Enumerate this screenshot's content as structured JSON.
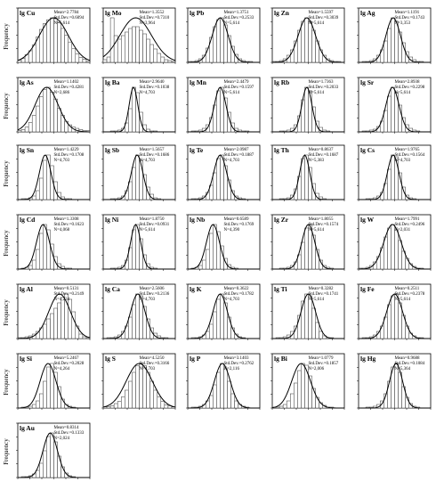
{
  "y_axis_label": "Frequency",
  "chart_data": [
    {
      "type": "bar",
      "title": "lg Cu",
      "stats": {
        "mean": "Mean=2.7784",
        "sd": "Std.Dev.=0.6094",
        "n": "N=5,614"
      },
      "values": [
        2,
        4,
        8,
        12,
        18,
        26,
        34,
        40,
        44,
        46,
        45,
        41,
        35,
        28,
        21,
        14,
        9,
        5,
        3,
        1
      ],
      "fit": {
        "mean": 0.5,
        "sd": 0.2
      }
    },
    {
      "type": "bar",
      "title": "lg Mo",
      "stats": {
        "mean": "Mean=1.3552",
        "sd": "Std.Dev.=0.7310",
        "n": "N=3,964"
      },
      "values": [
        3,
        6,
        50,
        30,
        26,
        30,
        34,
        38,
        40,
        40,
        36,
        32,
        26,
        20,
        15,
        10,
        6,
        3,
        2,
        1
      ],
      "fit": {
        "mean": 0.45,
        "sd": 0.22
      }
    },
    {
      "type": "bar",
      "title": "lg Pb",
      "stats": {
        "mean": "Mean=1.3751",
        "sd": "Std.Dev.=0.2533",
        "n": "N=5,614"
      },
      "values": [
        1,
        1,
        2,
        4,
        8,
        16,
        28,
        40,
        48,
        50,
        42,
        30,
        18,
        9,
        4,
        2,
        1,
        1,
        0,
        0
      ],
      "fit": {
        "mean": 0.45,
        "sd": 0.11
      }
    },
    {
      "type": "bar",
      "title": "lg Zn",
      "stats": {
        "mean": "Mean=1.5597",
        "sd": "Std.Dev.=0.3039",
        "n": "N=5,614"
      },
      "values": [
        1,
        1,
        2,
        4,
        8,
        14,
        24,
        36,
        46,
        50,
        46,
        36,
        24,
        14,
        8,
        4,
        2,
        1,
        1,
        0
      ],
      "fit": {
        "mean": 0.48,
        "sd": 0.12
      }
    },
    {
      "type": "bar",
      "title": "lg Ag",
      "stats": {
        "mean": "Mean=1.1191",
        "sd": "Std.Dev.=0.1743",
        "n": "N=3,353"
      },
      "values": [
        0,
        1,
        1,
        2,
        4,
        8,
        14,
        24,
        38,
        50,
        46,
        34,
        22,
        12,
        6,
        3,
        1,
        1,
        0,
        0
      ],
      "fit": {
        "mean": 0.48,
        "sd": 0.1
      }
    },
    {
      "type": "bar",
      "title": "lg As",
      "stats": {
        "mean": "Mean=1.1402",
        "sd": "Std.Dev.=0.4281",
        "n": "N=2,686"
      },
      "values": [
        1,
        2,
        4,
        8,
        14,
        22,
        30,
        36,
        38,
        34,
        28,
        20,
        14,
        9,
        6,
        4,
        3,
        2,
        1,
        1
      ],
      "fit": {
        "mean": 0.4,
        "sd": 0.16
      }
    },
    {
      "type": "bar",
      "title": "lg Ba",
      "stats": {
        "mean": "Mean=2.9640",
        "sd": "Std.Dev.=0.1038",
        "n": "N=4,703"
      },
      "values": [
        0,
        0,
        1,
        1,
        2,
        4,
        10,
        26,
        50,
        44,
        22,
        8,
        3,
        1,
        1,
        0,
        0,
        0,
        0,
        0
      ],
      "fit": {
        "mean": 0.42,
        "sd": 0.06
      }
    },
    {
      "type": "bar",
      "title": "lg Mn",
      "stats": {
        "mean": "Mean=2.4479",
        "sd": "Std.Dev.=0.1597",
        "n": "N=5,614"
      },
      "values": [
        0,
        1,
        1,
        2,
        4,
        8,
        16,
        30,
        46,
        50,
        38,
        22,
        10,
        4,
        2,
        1,
        1,
        0,
        0,
        0
      ],
      "fit": {
        "mean": 0.45,
        "sd": 0.08
      }
    },
    {
      "type": "bar",
      "title": "lg Rb",
      "stats": {
        "mean": "Mean=1.7363",
        "sd": "Std.Dev.=0.2033",
        "n": "N=5,614"
      },
      "values": [
        0,
        0,
        1,
        1,
        2,
        4,
        8,
        18,
        36,
        50,
        46,
        28,
        12,
        5,
        2,
        1,
        0,
        0,
        0,
        0
      ],
      "fit": {
        "mean": 0.48,
        "sd": 0.07
      }
    },
    {
      "type": "bar",
      "title": "lg Sr",
      "stats": {
        "mean": "Mean=2.8938",
        "sd": "Std.Dev.=0.2298",
        "n": "N=5,614"
      },
      "values": [
        0,
        1,
        1,
        2,
        3,
        6,
        12,
        24,
        40,
        50,
        44,
        30,
        16,
        8,
        4,
        2,
        1,
        0,
        0,
        0
      ],
      "fit": {
        "mean": 0.47,
        "sd": 0.09
      }
    },
    {
      "type": "bar",
      "title": "lg Sn",
      "stats": {
        "mean": "Mean=1.4229",
        "sd": "Std.Dev.=0.1708",
        "n": "N=4,703"
      },
      "values": [
        0,
        1,
        1,
        2,
        4,
        10,
        24,
        44,
        50,
        38,
        20,
        8,
        3,
        1,
        1,
        0,
        0,
        0,
        0,
        0
      ],
      "fit": {
        "mean": 0.38,
        "sd": 0.08
      }
    },
    {
      "type": "bar",
      "title": "lg Sb",
      "stats": {
        "mean": "Mean=1.5657",
        "sd": "Std.Dev.=0.1686",
        "n": "N=4,703"
      },
      "values": [
        0,
        0,
        1,
        1,
        2,
        4,
        10,
        20,
        36,
        50,
        44,
        28,
        14,
        6,
        2,
        1,
        0,
        0,
        0,
        0
      ],
      "fit": {
        "mean": 0.47,
        "sd": 0.08
      }
    },
    {
      "type": "bar",
      "title": "lg Te",
      "stats": {
        "mean": "Mean=2.0987",
        "sd": "Std.Dev.=0.1887",
        "n": "N=4,703"
      },
      "values": [
        0,
        1,
        1,
        2,
        4,
        8,
        16,
        30,
        46,
        50,
        38,
        22,
        10,
        4,
        2,
        1,
        0,
        0,
        0,
        0
      ],
      "fit": {
        "mean": 0.45,
        "sd": 0.09
      }
    },
    {
      "type": "bar",
      "title": "lg Th",
      "stats": {
        "mean": "Mean=0.8637",
        "sd": "Std.Dev.=0.1687",
        "n": "N=5,383"
      },
      "values": [
        0,
        0,
        1,
        1,
        2,
        5,
        12,
        26,
        46,
        50,
        36,
        18,
        7,
        3,
        1,
        0,
        0,
        0,
        0,
        0
      ],
      "fit": {
        "mean": 0.45,
        "sd": 0.07
      }
    },
    {
      "type": "bar",
      "title": "lg Cs",
      "stats": {
        "mean": "Mean=1.9765",
        "sd": "Std.Dev.=0.1564",
        "n": "N=4,703"
      },
      "values": [
        0,
        0,
        1,
        1,
        2,
        4,
        8,
        18,
        34,
        50,
        48,
        30,
        14,
        5,
        2,
        1,
        0,
        0,
        0,
        0
      ],
      "fit": {
        "mean": 0.48,
        "sd": 0.08
      }
    },
    {
      "type": "bar",
      "title": "lg Cd",
      "stats": {
        "mean": "Mean=1.3308",
        "sd": "Std.Dev.=0.1623",
        "n": "N=4,068"
      },
      "values": [
        0,
        1,
        2,
        4,
        10,
        22,
        40,
        50,
        44,
        28,
        14,
        6,
        3,
        1,
        1,
        0,
        0,
        0,
        0,
        0
      ],
      "fit": {
        "mean": 0.35,
        "sd": 0.09
      }
    },
    {
      "type": "bar",
      "title": "lg Ni",
      "stats": {
        "mean": "Mean=1.8750",
        "sd": "Std.Dev.=0.0931",
        "n": "N=5,614"
      },
      "values": [
        0,
        0,
        1,
        1,
        2,
        4,
        10,
        24,
        44,
        50,
        34,
        16,
        6,
        2,
        1,
        0,
        0,
        0,
        0,
        0
      ],
      "fit": {
        "mean": 0.45,
        "sd": 0.07
      }
    },
    {
      "type": "bar",
      "title": "lg Nb",
      "stats": {
        "mean": "Mean=0.6589",
        "sd": "Std.Dev.=0.1769",
        "n": "N=4,390"
      },
      "values": [
        0,
        1,
        2,
        4,
        10,
        22,
        40,
        50,
        42,
        26,
        12,
        5,
        2,
        1,
        0,
        0,
        0,
        0,
        0,
        0
      ],
      "fit": {
        "mean": 0.35,
        "sd": 0.09
      }
    },
    {
      "type": "bar",
      "title": "lg Zr",
      "stats": {
        "mean": "Mean=1.8055",
        "sd": "Std.Dev.=0.1574",
        "n": "N=5,614"
      },
      "values": [
        0,
        0,
        1,
        1,
        2,
        4,
        8,
        16,
        30,
        46,
        50,
        38,
        22,
        10,
        4,
        2,
        1,
        0,
        0,
        0
      ],
      "fit": {
        "mean": 0.5,
        "sd": 0.09
      }
    },
    {
      "type": "bar",
      "title": "lg W",
      "stats": {
        "mean": "Mean=1.7991",
        "sd": "Std.Dev.=0.2496",
        "n": "N=2,031"
      },
      "values": [
        1,
        1,
        2,
        4,
        8,
        14,
        24,
        36,
        46,
        50,
        44,
        32,
        20,
        12,
        6,
        3,
        1,
        1,
        0,
        0
      ],
      "fit": {
        "mean": 0.47,
        "sd": 0.12
      }
    },
    {
      "type": "bar",
      "title": "lg Al",
      "stats": {
        "mean": "Mean=0.5131",
        "sd": "Std.Dev.=0.2149",
        "n": "N=4,234"
      },
      "values": [
        1,
        1,
        2,
        3,
        5,
        8,
        12,
        16,
        22,
        28,
        34,
        40,
        46,
        50,
        44,
        30,
        14,
        5,
        2,
        1
      ],
      "fit": {
        "mean": 0.58,
        "sd": 0.15
      }
    },
    {
      "type": "bar",
      "title": "lg Ca",
      "stats": {
        "mean": "Mean=2.5606",
        "sd": "Std.Dev.=0.2136",
        "n": "N=4,703"
      },
      "values": [
        0,
        1,
        1,
        2,
        4,
        8,
        14,
        24,
        38,
        50,
        48,
        36,
        22,
        12,
        6,
        3,
        1,
        1,
        0,
        0
      ],
      "fit": {
        "mean": 0.48,
        "sd": 0.1
      }
    },
    {
      "type": "bar",
      "title": "lg K",
      "stats": {
        "mean": "Mean=0.3622",
        "sd": "Std.Dev.=0.1782",
        "n": "N=4,703"
      },
      "values": [
        0,
        1,
        1,
        2,
        4,
        8,
        16,
        30,
        44,
        50,
        40,
        24,
        12,
        5,
        2,
        1,
        0,
        0,
        0,
        0
      ],
      "fit": {
        "mean": 0.45,
        "sd": 0.1
      }
    },
    {
      "type": "bar",
      "title": "lg Ti",
      "stats": {
        "mean": "Mean=0.3282",
        "sd": "Std.Dev.=0.1741",
        "n": "N=5,614"
      },
      "values": [
        0,
        1,
        1,
        2,
        4,
        8,
        14,
        26,
        42,
        50,
        48,
        34,
        18,
        8,
        3,
        1,
        1,
        0,
        0,
        0
      ],
      "fit": {
        "mean": 0.5,
        "sd": 0.1
      }
    },
    {
      "type": "bar",
      "title": "lg Fe",
      "stats": {
        "mean": "Mean=0.2511",
        "sd": "Std.Dev.=0.2378",
        "n": "N=5,614"
      },
      "values": [
        0,
        1,
        1,
        2,
        4,
        8,
        14,
        24,
        38,
        48,
        50,
        40,
        26,
        14,
        6,
        3,
        1,
        1,
        0,
        0
      ],
      "fit": {
        "mean": 0.5,
        "sd": 0.11
      }
    },
    {
      "type": "bar",
      "title": "lg Si",
      "stats": {
        "mean": "Mean=5.2467",
        "sd": "Std.Dev.=0.2028",
        "n": "N=4,264"
      },
      "values": [
        0,
        1,
        1,
        2,
        4,
        8,
        16,
        30,
        46,
        50,
        40,
        24,
        10,
        4,
        2,
        1,
        0,
        0,
        0,
        0
      ],
      "fit": {
        "mean": 0.42,
        "sd": 0.11
      }
    },
    {
      "type": "bar",
      "title": "lg S",
      "stats": {
        "mean": "Mean=4.5250",
        "sd": "Std.Dev.=0.3166",
        "n": "N=4,703"
      },
      "values": [
        1,
        1,
        2,
        4,
        6,
        10,
        16,
        24,
        32,
        38,
        40,
        38,
        32,
        24,
        16,
        10,
        6,
        3,
        2,
        1
      ],
      "fit": {
        "mean": 0.5,
        "sd": 0.18
      }
    },
    {
      "type": "bar",
      "title": "lg P",
      "stats": {
        "mean": "Mean=3.1403",
        "sd": "Std.Dev.=0.2762",
        "n": "N=2,116"
      },
      "values": [
        0,
        1,
        1,
        2,
        4,
        8,
        14,
        26,
        40,
        50,
        44,
        30,
        16,
        8,
        4,
        2,
        1,
        0,
        0,
        0
      ],
      "fit": {
        "mean": 0.48,
        "sd": 0.11
      }
    },
    {
      "type": "bar",
      "title": "lg Bi",
      "stats": {
        "mean": "Mean=1.0779",
        "sd": "Std.Dev.=0.1857",
        "n": "N=2,006"
      },
      "values": [
        1,
        1,
        2,
        4,
        8,
        16,
        28,
        42,
        50,
        48,
        36,
        22,
        12,
        6,
        3,
        1,
        1,
        0,
        0,
        0
      ],
      "fit": {
        "mean": 0.4,
        "sd": 0.13
      }
    },
    {
      "type": "bar",
      "title": "lg Hg",
      "stats": {
        "mean": "Mean=0.9688",
        "sd": "Std.Dev.=0.1084",
        "n": "N=5,364"
      },
      "values": [
        0,
        0,
        1,
        1,
        2,
        4,
        8,
        16,
        30,
        46,
        50,
        40,
        24,
        12,
        5,
        2,
        1,
        0,
        0,
        0
      ],
      "fit": {
        "mean": 0.52,
        "sd": 0.09
      }
    },
    {
      "type": "bar",
      "title": "lg Au",
      "stats": {
        "mean": "Mean=0.8314",
        "sd": "Std.Dev.=0.1333",
        "n": "N=2,024"
      },
      "values": [
        0,
        1,
        1,
        2,
        4,
        8,
        16,
        30,
        46,
        50,
        40,
        24,
        12,
        5,
        2,
        1,
        0,
        0,
        0,
        0
      ],
      "fit": {
        "mean": 0.45,
        "sd": 0.1
      }
    }
  ]
}
